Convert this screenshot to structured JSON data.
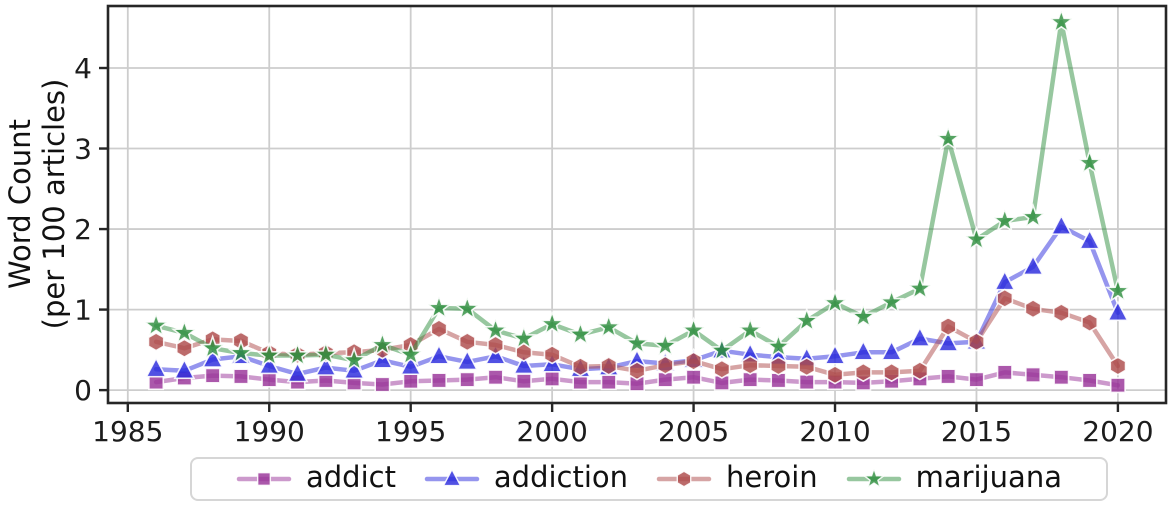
{
  "chart_data": {
    "type": "line",
    "title": "",
    "xlabel": "",
    "ylabel_line1": "Word Count",
    "ylabel_line2": "(per 100 articles)",
    "x": [
      1986,
      1987,
      1988,
      1989,
      1990,
      1991,
      1992,
      1993,
      1994,
      1995,
      1996,
      1997,
      1998,
      1999,
      2000,
      2001,
      2002,
      2003,
      2004,
      2005,
      2006,
      2007,
      2008,
      2009,
      2010,
      2011,
      2012,
      2013,
      2014,
      2015,
      2016,
      2017,
      2018,
      2019,
      2020
    ],
    "x_ticks": [
      1985,
      1990,
      1995,
      2000,
      2005,
      2010,
      2015,
      2020
    ],
    "y_ticks": [
      0,
      1,
      2,
      3,
      4
    ],
    "xlim": [
      1984.3,
      2021.7
    ],
    "ylim": [
      -0.16,
      4.77
    ],
    "grid": true,
    "legend_position": "bottom-outside",
    "colors": {
      "grid": "#cdcdcd",
      "spine": "#262626",
      "tick_label": "#1c1c1c"
    },
    "series": [
      {
        "name": "addict",
        "marker": "square",
        "color": "#993399",
        "values": [
          0.1,
          0.15,
          0.18,
          0.17,
          0.13,
          0.1,
          0.12,
          0.09,
          0.07,
          0.11,
          0.12,
          0.13,
          0.16,
          0.11,
          0.14,
          0.1,
          0.1,
          0.08,
          0.13,
          0.16,
          0.09,
          0.13,
          0.12,
          0.1,
          0.1,
          0.09,
          0.11,
          0.14,
          0.17,
          0.13,
          0.22,
          0.19,
          0.16,
          0.12,
          0.06
        ]
      },
      {
        "name": "addiction",
        "marker": "triangle",
        "color": "#2b2bdd",
        "values": [
          0.26,
          0.24,
          0.38,
          0.42,
          0.3,
          0.2,
          0.28,
          0.24,
          0.37,
          0.29,
          0.42,
          0.35,
          0.42,
          0.3,
          0.32,
          0.26,
          0.28,
          0.36,
          0.33,
          0.37,
          0.49,
          0.44,
          0.41,
          0.39,
          0.42,
          0.47,
          0.47,
          0.64,
          0.58,
          0.6,
          1.34,
          1.53,
          2.03,
          1.85,
          0.96
        ]
      },
      {
        "name": "heroin",
        "marker": "hexagon",
        "color": "#ad4a4a",
        "values": [
          0.6,
          0.52,
          0.63,
          0.61,
          0.46,
          0.44,
          0.46,
          0.47,
          0.5,
          0.56,
          0.76,
          0.6,
          0.56,
          0.47,
          0.44,
          0.29,
          0.3,
          0.24,
          0.31,
          0.36,
          0.26,
          0.31,
          0.3,
          0.29,
          0.19,
          0.22,
          0.22,
          0.24,
          0.79,
          0.6,
          1.14,
          1.01,
          0.96,
          0.84,
          0.3
        ]
      },
      {
        "name": "marijuana",
        "marker": "star",
        "color": "#2f8f40",
        "values": [
          0.8,
          0.71,
          0.52,
          0.46,
          0.43,
          0.43,
          0.44,
          0.37,
          0.56,
          0.44,
          1.02,
          1.01,
          0.74,
          0.64,
          0.82,
          0.69,
          0.78,
          0.58,
          0.55,
          0.74,
          0.49,
          0.74,
          0.54,
          0.86,
          1.08,
          0.91,
          1.09,
          1.26,
          3.12,
          1.87,
          2.1,
          2.15,
          4.57,
          2.82,
          1.23
        ]
      }
    ]
  }
}
